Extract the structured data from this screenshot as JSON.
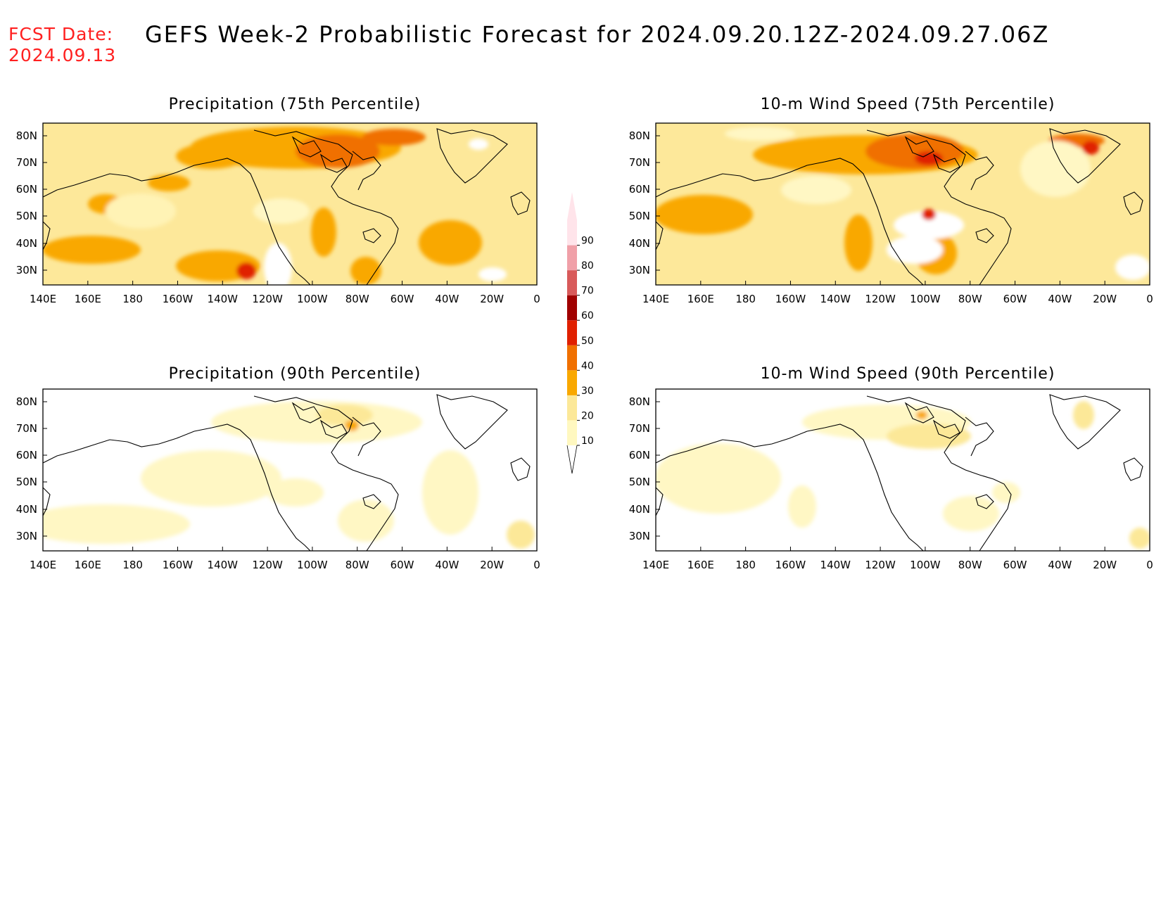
{
  "header": {
    "fcst_label": "FCST Date:",
    "fcst_date": "2024.09.13",
    "title": "GEFS Week-2 Probabilistic Forecast for 2024.09.20.12Z-2024.09.27.06Z"
  },
  "axes": {
    "lon_ticks": [
      "140E",
      "160E",
      "180",
      "160W",
      "140W",
      "120W",
      "100W",
      "80W",
      "60W",
      "40W",
      "20W",
      "0"
    ],
    "lat_ticks": [
      "80N",
      "70N",
      "60N",
      "50N",
      "40N",
      "30N"
    ]
  },
  "panels": [
    {
      "id": "precip-75",
      "title": "Precipitation (75th Percentile)",
      "intensity": "high"
    },
    {
      "id": "wind-75",
      "title": "10-m Wind Speed (75th Percentile)",
      "intensity": "high"
    },
    {
      "id": "precip-90",
      "title": "Precipitation (90th Percentile)",
      "intensity": "low"
    },
    {
      "id": "wind-90",
      "title": "10-m Wind Speed (90th Percentile)",
      "intensity": "low"
    }
  ],
  "colorbar": {
    "levels": [
      "10",
      "20",
      "30",
      "40",
      "50",
      "60",
      "70",
      "80",
      "90"
    ],
    "colors": [
      "#fff8c0",
      "#fce898",
      "#f9a800",
      "#f07000",
      "#e02000",
      "#a00000",
      "#d85a5a",
      "#f0a0a8",
      "#ffe4ea"
    ]
  }
}
